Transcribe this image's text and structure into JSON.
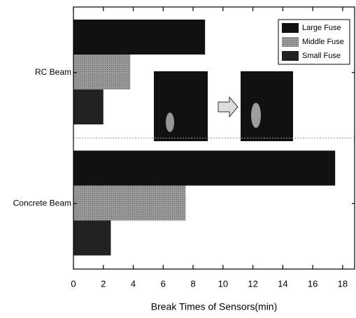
{
  "chart_data": {
    "type": "bar",
    "orientation": "horizontal",
    "x_label": "Break Times of Sensors(min)",
    "categories": [
      "RC Beam",
      "Concrete Beam"
    ],
    "series": [
      {
        "name": "Large Fuse",
        "color": "#111111",
        "values": [
          8.8,
          17.5
        ]
      },
      {
        "name": "Middle Fuse",
        "color": "#8c8c8c",
        "values": [
          3.8,
          7.5
        ]
      },
      {
        "name": "Small Fuse",
        "color": "#222222",
        "values": [
          2.0,
          2.5
        ]
      }
    ],
    "xlim": [
      0,
      18.8
    ],
    "xticks": [
      0,
      2,
      4,
      6,
      8,
      10,
      12,
      14,
      16,
      18
    ],
    "legend": "upper right"
  }
}
